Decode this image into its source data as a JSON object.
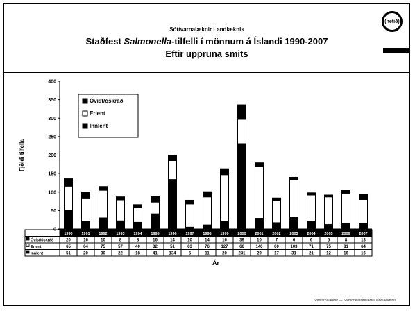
{
  "header": {
    "org": "Sóttvarnalæknir Landlæknis",
    "title_pre": "Staðfest ",
    "title_italic": "Salmonella",
    "title_post": "-tilfelli í mönnum á Íslandi 1990-2007",
    "subtitle": "Eftir uppruna smits",
    "logo_text": "(netið)"
  },
  "chart_data": {
    "type": "bar",
    "stacked": true,
    "title": "",
    "xlabel": "Ár",
    "ylabel": "Fjöldi tilfella",
    "ylim": [
      0,
      400
    ],
    "yticks": [
      0,
      50,
      100,
      150,
      200,
      250,
      300,
      350,
      400
    ],
    "grid": false,
    "legend_position": "top-left",
    "categories": [
      "1990",
      "1991",
      "1992",
      "1993",
      "1994",
      "1995",
      "1996",
      "1997",
      "1998",
      "1999",
      "2000",
      "2001",
      "2002",
      "2003",
      "2004",
      "2005",
      "2006",
      "2007"
    ],
    "series": [
      {
        "name": "Innlent",
        "color": "#000000",
        "values": [
          51,
          20,
          30,
          22,
          18,
          41,
          134,
          5,
          11,
          20,
          231,
          29,
          17,
          31,
          21,
          12,
          16,
          16
        ]
      },
      {
        "name": "Erlent",
        "color": "#ffffff",
        "values": [
          65,
          64,
          75,
          57,
          40,
          32,
          51,
          63,
          76,
          127,
          66,
          140,
          60,
          103,
          71,
          75,
          81,
          64
        ]
      },
      {
        "name": "Óvíst/óskráð",
        "color": "#000000",
        "values": [
          20,
          16,
          10,
          8,
          8,
          16,
          14,
          10,
          14,
          16,
          39,
          10,
          7,
          6,
          6,
          5,
          8,
          13
        ]
      }
    ],
    "table_rows": [
      "Óvíst/óskráð",
      "Erlent",
      "Innlent"
    ]
  },
  "footer": {
    "left": "Sóttvarnalæknir — Salmonellatilfelli",
    "right": "www.landlaeknir.is"
  }
}
